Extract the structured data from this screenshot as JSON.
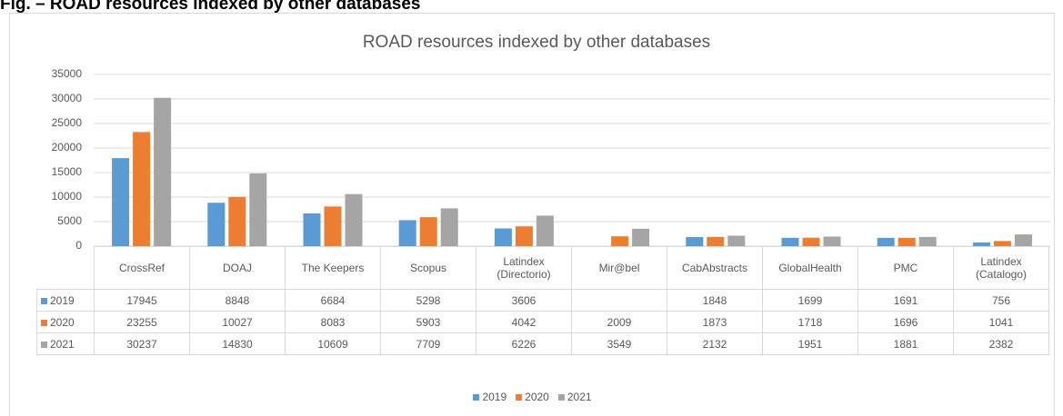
{
  "caption": "Fig. – ROAD resources indexed by other databases",
  "chart_data": {
    "type": "bar",
    "title": "ROAD resources indexed by other databases",
    "categories": [
      "CrossRef",
      "DOAJ",
      "The Keepers",
      "Scopus",
      "Latindex (Directorio)",
      "Mir@bel",
      "CabAbstracts",
      "GlobalHealth",
      "PMC",
      "Latindex (Catalogo)"
    ],
    "series": [
      {
        "name": "2019",
        "color": "#5b9bd5",
        "values": [
          17945,
          8848,
          6684,
          5298,
          3606,
          null,
          1848,
          1699,
          1691,
          756
        ]
      },
      {
        "name": "2020",
        "color": "#ed7d31",
        "values": [
          23255,
          10027,
          8083,
          5903,
          4042,
          2009,
          1873,
          1718,
          1696,
          1041
        ]
      },
      {
        "name": "2021",
        "color": "#a5a5a5",
        "values": [
          30237,
          14830,
          10609,
          7709,
          6226,
          3549,
          2132,
          1951,
          1881,
          2382
        ]
      }
    ],
    "ylim": [
      0,
      35000
    ],
    "yticks": [
      0,
      5000,
      10000,
      15000,
      20000,
      25000,
      30000,
      35000
    ],
    "grid": true,
    "legend": "bottom"
  }
}
